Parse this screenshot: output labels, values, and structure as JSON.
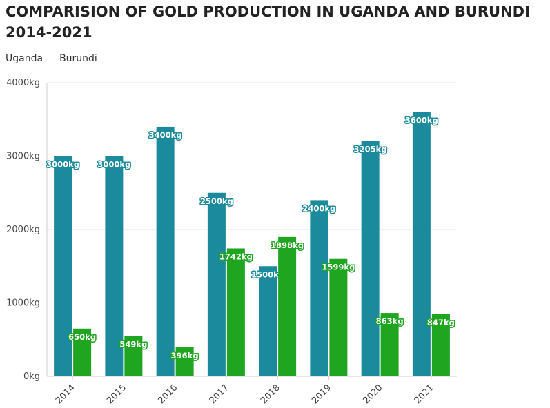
{
  "chart_data": {
    "type": "bar",
    "title": "COMPARISION OF GOLD PRODUCTION IN UGANDA AND BURUNDI 2014-2021",
    "categories": [
      "2014",
      "2015",
      "2016",
      "2017",
      "2018",
      "2019",
      "2020",
      "2021"
    ],
    "series": [
      {
        "name": "Uganda",
        "color": "#1b8a9c",
        "values": [
          3000,
          3000,
          3400,
          2500,
          1500,
          2400,
          3205,
          3600
        ],
        "labels": [
          "3000kg",
          "3000kg",
          "3400kg",
          "2500kg",
          "1500kg",
          "2400kg",
          "3205kg",
          "3600kg"
        ]
      },
      {
        "name": "Burundi",
        "color": "#1fa51f",
        "values": [
          650,
          549,
          396,
          1742,
          1898,
          1599,
          863,
          847
        ],
        "labels": [
          "650kg",
          "549kg",
          "396kg",
          "1742kg",
          "1898kg",
          "1599kg",
          "863kg",
          "847kg"
        ]
      }
    ],
    "ylim": [
      0,
      4000
    ],
    "yticks": [
      0,
      1000,
      2000,
      3000,
      4000
    ],
    "ytick_labels": [
      "0kg",
      "1000kg",
      "2000kg",
      "3000kg",
      "4000kg"
    ],
    "xlabel": "",
    "ylabel": "",
    "grid": true,
    "legend": "top-left"
  }
}
